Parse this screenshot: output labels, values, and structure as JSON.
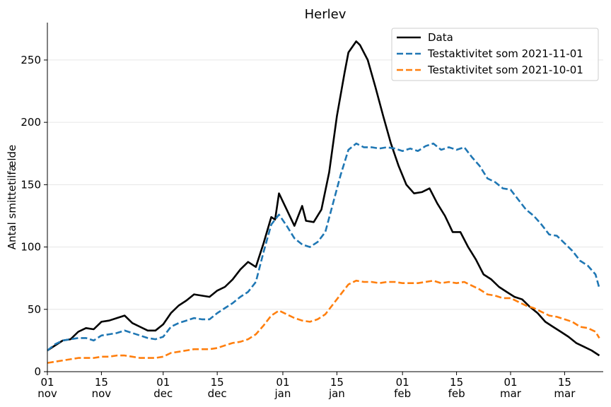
{
  "chart_data": {
    "type": "line",
    "title": "Herlev",
    "xlabel": "",
    "ylabel": "Antal smittetilfælde",
    "ylim": [
      0,
      280
    ],
    "yticks": [
      0,
      50,
      100,
      150,
      200,
      250
    ],
    "xlim": [
      "2021-11-01",
      "2022-03-25"
    ],
    "xticks": [
      {
        "date": "2021-11-01",
        "day": "01",
        "month": "nov"
      },
      {
        "date": "2021-11-15",
        "day": "15",
        "month": "nov"
      },
      {
        "date": "2021-12-01",
        "day": "01",
        "month": "dec"
      },
      {
        "date": "2021-12-15",
        "day": "15",
        "month": "dec"
      },
      {
        "date": "2022-01-01",
        "day": "01",
        "month": "jan"
      },
      {
        "date": "2022-01-15",
        "day": "15",
        "month": "jan"
      },
      {
        "date": "2022-02-01",
        "day": "01",
        "month": "feb"
      },
      {
        "date": "2022-02-15",
        "day": "15",
        "month": "feb"
      },
      {
        "date": "2022-03-01",
        "day": "01",
        "month": "mar"
      },
      {
        "date": "2022-03-15",
        "day": "15",
        "month": "mar"
      }
    ],
    "grid": "horizontal",
    "legend_position": "top-right",
    "series": [
      {
        "name": "Data",
        "color": "#000000",
        "style": "solid",
        "points": [
          [
            "2021-11-01",
            17
          ],
          [
            "2021-11-03",
            21
          ],
          [
            "2021-11-05",
            25
          ],
          [
            "2021-11-07",
            26
          ],
          [
            "2021-11-09",
            32
          ],
          [
            "2021-11-11",
            35
          ],
          [
            "2021-11-13",
            34
          ],
          [
            "2021-11-15",
            40
          ],
          [
            "2021-11-17",
            41
          ],
          [
            "2021-11-19",
            43
          ],
          [
            "2021-11-21",
            45
          ],
          [
            "2021-11-23",
            39
          ],
          [
            "2021-11-25",
            36
          ],
          [
            "2021-11-27",
            33
          ],
          [
            "2021-11-29",
            33
          ],
          [
            "2021-12-01",
            38
          ],
          [
            "2021-12-03",
            47
          ],
          [
            "2021-12-05",
            53
          ],
          [
            "2021-12-07",
            57
          ],
          [
            "2021-12-09",
            62
          ],
          [
            "2021-12-11",
            61
          ],
          [
            "2021-12-13",
            60
          ],
          [
            "2021-12-15",
            65
          ],
          [
            "2021-12-17",
            68
          ],
          [
            "2021-12-19",
            74
          ],
          [
            "2021-12-21",
            82
          ],
          [
            "2021-12-23",
            88
          ],
          [
            "2021-12-25",
            84
          ],
          [
            "2021-12-27",
            103
          ],
          [
            "2021-12-29",
            124
          ],
          [
            "2021-12-30",
            122
          ],
          [
            "2021-12-31",
            143
          ],
          [
            "2022-01-02",
            130
          ],
          [
            "2022-01-04",
            117
          ],
          [
            "2022-01-06",
            133
          ],
          [
            "2022-01-07",
            121
          ],
          [
            "2022-01-09",
            120
          ],
          [
            "2022-01-11",
            130
          ],
          [
            "2022-01-13",
            160
          ],
          [
            "2022-01-15",
            205
          ],
          [
            "2022-01-17",
            240
          ],
          [
            "2022-01-18",
            256
          ],
          [
            "2022-01-20",
            265
          ],
          [
            "2022-01-21",
            262
          ],
          [
            "2022-01-23",
            250
          ],
          [
            "2022-01-25",
            228
          ],
          [
            "2022-01-27",
            205
          ],
          [
            "2022-01-29",
            183
          ],
          [
            "2022-01-31",
            165
          ],
          [
            "2022-02-02",
            150
          ],
          [
            "2022-02-04",
            143
          ],
          [
            "2022-02-06",
            144
          ],
          [
            "2022-02-08",
            147
          ],
          [
            "2022-02-10",
            135
          ],
          [
            "2022-02-12",
            125
          ],
          [
            "2022-02-14",
            112
          ],
          [
            "2022-02-16",
            112
          ],
          [
            "2022-02-18",
            100
          ],
          [
            "2022-02-20",
            90
          ],
          [
            "2022-02-22",
            78
          ],
          [
            "2022-02-24",
            74
          ],
          [
            "2022-02-26",
            68
          ],
          [
            "2022-02-28",
            64
          ],
          [
            "2022-03-02",
            60
          ],
          [
            "2022-03-04",
            58
          ],
          [
            "2022-03-06",
            52
          ],
          [
            "2022-03-08",
            47
          ],
          [
            "2022-03-10",
            40
          ],
          [
            "2022-03-12",
            36
          ],
          [
            "2022-03-14",
            32
          ],
          [
            "2022-03-16",
            28
          ],
          [
            "2022-03-18",
            23
          ],
          [
            "2022-03-20",
            20
          ],
          [
            "2022-03-22",
            17
          ],
          [
            "2022-03-24",
            13
          ]
        ]
      },
      {
        "name": "Testaktivitet som 2021-11-01",
        "color": "#1f77b4",
        "style": "dashed",
        "points": [
          [
            "2021-11-01",
            17
          ],
          [
            "2021-11-03",
            22
          ],
          [
            "2021-11-05",
            25
          ],
          [
            "2021-11-07",
            26
          ],
          [
            "2021-11-09",
            27
          ],
          [
            "2021-11-11",
            27
          ],
          [
            "2021-11-13",
            25
          ],
          [
            "2021-11-15",
            29
          ],
          [
            "2021-11-17",
            30
          ],
          [
            "2021-11-19",
            31
          ],
          [
            "2021-11-21",
            33
          ],
          [
            "2021-11-23",
            31
          ],
          [
            "2021-11-25",
            29
          ],
          [
            "2021-11-27",
            27
          ],
          [
            "2021-11-29",
            26
          ],
          [
            "2021-12-01",
            28
          ],
          [
            "2021-12-03",
            36
          ],
          [
            "2021-12-05",
            39
          ],
          [
            "2021-12-07",
            41
          ],
          [
            "2021-12-09",
            43
          ],
          [
            "2021-12-11",
            42
          ],
          [
            "2021-12-13",
            42
          ],
          [
            "2021-12-15",
            47
          ],
          [
            "2021-12-17",
            51
          ],
          [
            "2021-12-19",
            55
          ],
          [
            "2021-12-21",
            60
          ],
          [
            "2021-12-23",
            64
          ],
          [
            "2021-12-25",
            72
          ],
          [
            "2021-12-27",
            96
          ],
          [
            "2021-12-29",
            118
          ],
          [
            "2021-12-31",
            126
          ],
          [
            "2022-01-02",
            117
          ],
          [
            "2022-01-04",
            107
          ],
          [
            "2022-01-06",
            102
          ],
          [
            "2022-01-08",
            100
          ],
          [
            "2022-01-10",
            104
          ],
          [
            "2022-01-12",
            112
          ],
          [
            "2022-01-14",
            135
          ],
          [
            "2022-01-16",
            158
          ],
          [
            "2022-01-18",
            178
          ],
          [
            "2022-01-20",
            183
          ],
          [
            "2022-01-22",
            180
          ],
          [
            "2022-01-24",
            180
          ],
          [
            "2022-01-26",
            179
          ],
          [
            "2022-01-28",
            180
          ],
          [
            "2022-01-30",
            179
          ],
          [
            "2022-02-01",
            177
          ],
          [
            "2022-02-03",
            179
          ],
          [
            "2022-02-05",
            177
          ],
          [
            "2022-02-07",
            181
          ],
          [
            "2022-02-09",
            183
          ],
          [
            "2022-02-11",
            178
          ],
          [
            "2022-02-13",
            180
          ],
          [
            "2022-02-15",
            178
          ],
          [
            "2022-02-17",
            180
          ],
          [
            "2022-02-19",
            172
          ],
          [
            "2022-02-21",
            165
          ],
          [
            "2022-02-23",
            155
          ],
          [
            "2022-02-25",
            152
          ],
          [
            "2022-02-27",
            147
          ],
          [
            "2022-03-01",
            146
          ],
          [
            "2022-03-03",
            138
          ],
          [
            "2022-03-05",
            130
          ],
          [
            "2022-03-07",
            125
          ],
          [
            "2022-03-09",
            118
          ],
          [
            "2022-03-11",
            110
          ],
          [
            "2022-03-13",
            109
          ],
          [
            "2022-03-15",
            103
          ],
          [
            "2022-03-17",
            97
          ],
          [
            "2022-03-19",
            89
          ],
          [
            "2022-03-21",
            85
          ],
          [
            "2022-03-23",
            78
          ],
          [
            "2022-03-24",
            67
          ]
        ]
      },
      {
        "name": "Testaktivitet som 2021-10-01",
        "color": "#ff7f0e",
        "style": "dashed",
        "points": [
          [
            "2021-11-01",
            7
          ],
          [
            "2021-11-03",
            8
          ],
          [
            "2021-11-05",
            9
          ],
          [
            "2021-11-07",
            10
          ],
          [
            "2021-11-09",
            11
          ],
          [
            "2021-11-11",
            11
          ],
          [
            "2021-11-13",
            11
          ],
          [
            "2021-11-15",
            12
          ],
          [
            "2021-11-17",
            12
          ],
          [
            "2021-11-19",
            13
          ],
          [
            "2021-11-21",
            13
          ],
          [
            "2021-11-23",
            12
          ],
          [
            "2021-11-25",
            11
          ],
          [
            "2021-11-27",
            11
          ],
          [
            "2021-11-29",
            11
          ],
          [
            "2021-12-01",
            12
          ],
          [
            "2021-12-03",
            15
          ],
          [
            "2021-12-05",
            16
          ],
          [
            "2021-12-07",
            17
          ],
          [
            "2021-12-09",
            18
          ],
          [
            "2021-12-11",
            18
          ],
          [
            "2021-12-13",
            18
          ],
          [
            "2021-12-15",
            19
          ],
          [
            "2021-12-17",
            21
          ],
          [
            "2021-12-19",
            23
          ],
          [
            "2021-12-21",
            24
          ],
          [
            "2021-12-23",
            26
          ],
          [
            "2021-12-25",
            30
          ],
          [
            "2021-12-27",
            37
          ],
          [
            "2021-12-29",
            45
          ],
          [
            "2021-12-31",
            49
          ],
          [
            "2022-01-02",
            46
          ],
          [
            "2022-01-04",
            43
          ],
          [
            "2022-01-06",
            41
          ],
          [
            "2022-01-08",
            40
          ],
          [
            "2022-01-10",
            42
          ],
          [
            "2022-01-12",
            46
          ],
          [
            "2022-01-14",
            54
          ],
          [
            "2022-01-16",
            62
          ],
          [
            "2022-01-18",
            70
          ],
          [
            "2022-01-20",
            73
          ],
          [
            "2022-01-22",
            72
          ],
          [
            "2022-01-24",
            72
          ],
          [
            "2022-01-26",
            71
          ],
          [
            "2022-01-28",
            72
          ],
          [
            "2022-01-30",
            72
          ],
          [
            "2022-02-01",
            71
          ],
          [
            "2022-02-03",
            71
          ],
          [
            "2022-02-05",
            71
          ],
          [
            "2022-02-07",
            72
          ],
          [
            "2022-02-09",
            73
          ],
          [
            "2022-02-11",
            71
          ],
          [
            "2022-02-13",
            72
          ],
          [
            "2022-02-15",
            71
          ],
          [
            "2022-02-17",
            72
          ],
          [
            "2022-02-19",
            69
          ],
          [
            "2022-02-21",
            66
          ],
          [
            "2022-02-23",
            62
          ],
          [
            "2022-02-25",
            61
          ],
          [
            "2022-02-27",
            59
          ],
          [
            "2022-03-01",
            59
          ],
          [
            "2022-03-03",
            56
          ],
          [
            "2022-03-05",
            53
          ],
          [
            "2022-03-07",
            51
          ],
          [
            "2022-03-09",
            48
          ],
          [
            "2022-03-11",
            45
          ],
          [
            "2022-03-13",
            44
          ],
          [
            "2022-03-15",
            42
          ],
          [
            "2022-03-17",
            40
          ],
          [
            "2022-03-19",
            36
          ],
          [
            "2022-03-21",
            35
          ],
          [
            "2022-03-23",
            32
          ],
          [
            "2022-03-24",
            27
          ]
        ]
      }
    ]
  }
}
